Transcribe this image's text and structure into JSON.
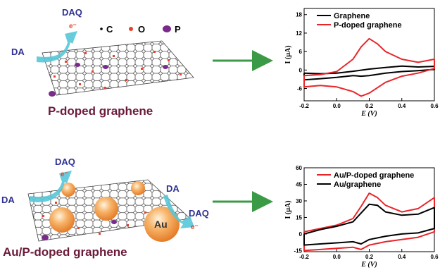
{
  "colors": {
    "molecule_label": "#2e3192",
    "caption": "#6b1a3a",
    "arrow_cyan": "#57c6d8",
    "arrow_green": "#3a9a45",
    "oxygen": "#e8412a",
    "phosphorus": "#7a2a8c",
    "carbon": "#000000",
    "gold_np": "#f39a4a",
    "curve_black": "#000000",
    "curve_red": "#e8262a"
  },
  "top_scheme": {
    "daq_label": "DAQ",
    "electron_label": "e⁻",
    "da_label": "DA",
    "legend": [
      {
        "symbol": "•",
        "label": "C"
      },
      {
        "symbol": "●",
        "label": "O"
      },
      {
        "symbol": "●",
        "label": "P"
      }
    ],
    "caption": "P-doped graphene"
  },
  "bottom_scheme": {
    "daq_label": "DAQ",
    "electron_label": "e⁻",
    "da_label": "DA",
    "da_label_right": "DA",
    "daq_label_right": "DAQ",
    "electron_label_right": "e⁻",
    "au_label": "Au",
    "caption": "Au/P-doped graphene"
  },
  "chart_data": [
    {
      "type": "line",
      "xlabel": "E (V)",
      "ylabel": "I (µA)",
      "xlim": [
        -0.2,
        0.6
      ],
      "ylim": [
        -10,
        20
      ],
      "x_ticks": [
        -0.2,
        0.0,
        0.2,
        0.4,
        0.6
      ],
      "x_tick_labels": [
        "-0.2",
        "0.0",
        "0.2",
        "0.4",
        "0.6"
      ],
      "y_ticks": [
        -6,
        0,
        6,
        12,
        18
      ],
      "y_tick_labels": [
        "-6",
        "0",
        "6",
        "12",
        "18"
      ],
      "legend_position": "top",
      "series": [
        {
          "name": "Graphene",
          "color": "#000000",
          "x": [
            -0.2,
            -0.1,
            0.0,
            0.1,
            0.2,
            0.3,
            0.4,
            0.5,
            0.6,
            0.6,
            0.5,
            0.4,
            0.3,
            0.2,
            0.15,
            0.1,
            0.0,
            -0.1,
            -0.2,
            -0.2
          ],
          "y": [
            -1.0,
            -1.2,
            -1.0,
            -0.4,
            0.3,
            0.8,
            1.3,
            1.0,
            1.2,
            0.2,
            -0.2,
            -0.5,
            -1.0,
            -1.8,
            -2.0,
            -1.8,
            -2.4,
            -2.8,
            -3.2,
            -1.0
          ]
        },
        {
          "name": "P-doped graphene",
          "color": "#e8262a",
          "x": [
            -0.2,
            -0.1,
            0.0,
            0.1,
            0.15,
            0.2,
            0.25,
            0.3,
            0.4,
            0.5,
            0.6,
            0.6,
            0.5,
            0.4,
            0.3,
            0.2,
            0.15,
            0.1,
            0.0,
            -0.1,
            -0.2,
            -0.2
          ],
          "y": [
            -1.8,
            -1.5,
            -0.5,
            3.5,
            7.5,
            10.2,
            8.5,
            6.0,
            3.5,
            2.5,
            3.5,
            0.5,
            -1.0,
            -2.0,
            -4.0,
            -7.5,
            -8.5,
            -7.0,
            -5.5,
            -5.0,
            -5.5,
            -1.8
          ]
        }
      ]
    },
    {
      "type": "line",
      "xlabel": "E (V)",
      "ylabel": "I (µA)",
      "xlim": [
        -0.2,
        0.6
      ],
      "ylim": [
        -16,
        60
      ],
      "x_ticks": [
        -0.2,
        0.0,
        0.2,
        0.4,
        0.6
      ],
      "x_tick_labels": [
        "-0.2",
        "0.0",
        "0.2",
        "0.4",
        "0.6"
      ],
      "y_ticks": [
        -15,
        0,
        15,
        30,
        45,
        60
      ],
      "y_tick_labels": [
        "-15",
        "0",
        "15",
        "30",
        "45",
        "60"
      ],
      "legend_position": "top",
      "series": [
        {
          "name": "Au/P-doped graphene",
          "color": "#e8262a",
          "x": [
            -0.2,
            -0.1,
            0.0,
            0.1,
            0.15,
            0.2,
            0.25,
            0.3,
            0.4,
            0.5,
            0.6,
            0.6,
            0.5,
            0.4,
            0.3,
            0.2,
            0.15,
            0.1,
            0.0,
            -0.1,
            -0.2,
            -0.2
          ],
          "y": [
            2,
            5,
            8,
            14,
            25,
            37,
            33,
            26,
            20,
            23,
            33,
            2,
            -3,
            -5,
            -7,
            -10,
            -14,
            -12,
            -13,
            -14,
            -15,
            2
          ]
        },
        {
          "name": "Au/graphene",
          "color": "#000000",
          "x": [
            -0.2,
            -0.1,
            0.0,
            0.1,
            0.15,
            0.2,
            0.25,
            0.3,
            0.4,
            0.5,
            0.6,
            0.6,
            0.5,
            0.4,
            0.3,
            0.2,
            0.15,
            0.1,
            0.0,
            -0.1,
            -0.2,
            -0.2
          ],
          "y": [
            0,
            4,
            7,
            11,
            19,
            27,
            26,
            20,
            17,
            18,
            24,
            5,
            1,
            0,
            -2,
            -5,
            -9,
            -7,
            -8,
            -9,
            -10,
            0
          ]
        }
      ]
    }
  ]
}
